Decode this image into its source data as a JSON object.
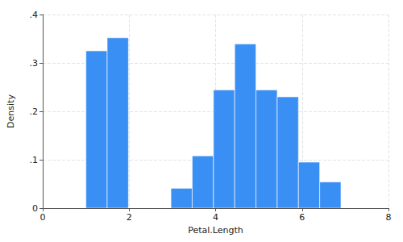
{
  "chart_data": {
    "type": "histogram",
    "xlabel": "Petal.Length",
    "ylabel": "Density",
    "bins": [
      1,
      1.4917,
      1.9833,
      2.475,
      2.9667,
      3.4583,
      3.95,
      4.4417,
      4.9333,
      5.425,
      5.9167,
      6.4083,
      6.9
    ],
    "values": [
      0.325,
      0.352,
      0,
      0,
      0.041,
      0.108,
      0.244,
      0.339,
      0.244,
      0.23,
      0.095,
      0.054
    ],
    "color": "#3a8ff5",
    "xlim": [
      0,
      8
    ],
    "xticks": [
      0,
      2,
      4,
      6,
      8
    ],
    "ylim": [
      0,
      0.4
    ],
    "yticks": [
      0,
      {
        "value": 0.1,
        "label": ".1"
      },
      {
        "value": 0.2,
        "label": ".2"
      },
      {
        "value": 0.3,
        "label": ".3"
      },
      {
        "value": 0.4,
        "label": ".4"
      }
    ],
    "grid": true
  }
}
